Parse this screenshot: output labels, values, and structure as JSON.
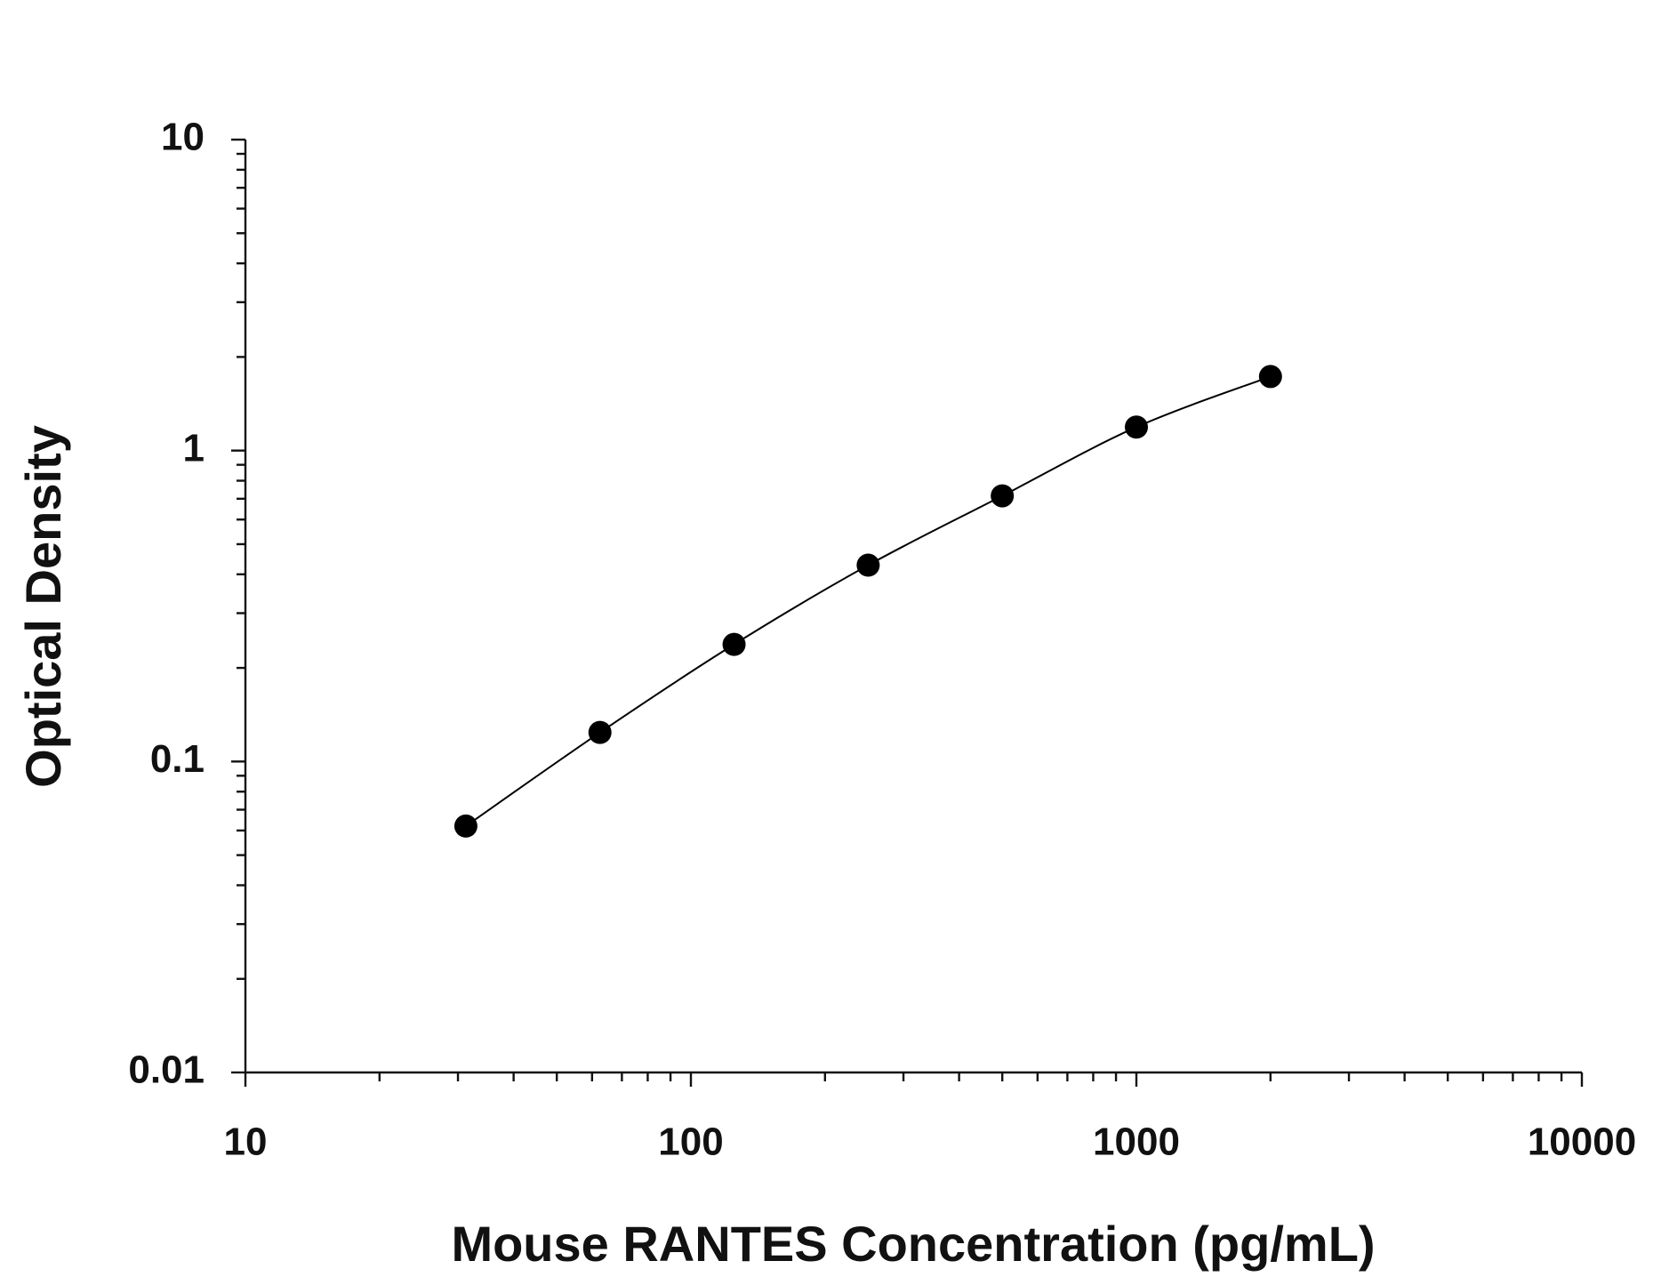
{
  "chart_data": {
    "type": "scatter",
    "xlabel": "Mouse RANTES Concentration (pg/mL)",
    "ylabel": "Optical Density",
    "x": [
      31.25,
      62.5,
      125,
      250,
      500,
      1000,
      2000
    ],
    "series": [
      {
        "color": "#000000",
        "values": [
          0.062,
          0.124,
          0.238,
          0.428,
          0.715,
          1.19,
          1.73
        ]
      }
    ],
    "xscale": "log",
    "yscale": "log",
    "xlim": [
      10,
      10000
    ],
    "ylim": [
      0.01,
      10
    ],
    "xticks": [
      10,
      100,
      1000,
      10000
    ],
    "yticks": [
      0.01,
      0.1,
      1,
      10
    ],
    "fit_line": true
  }
}
